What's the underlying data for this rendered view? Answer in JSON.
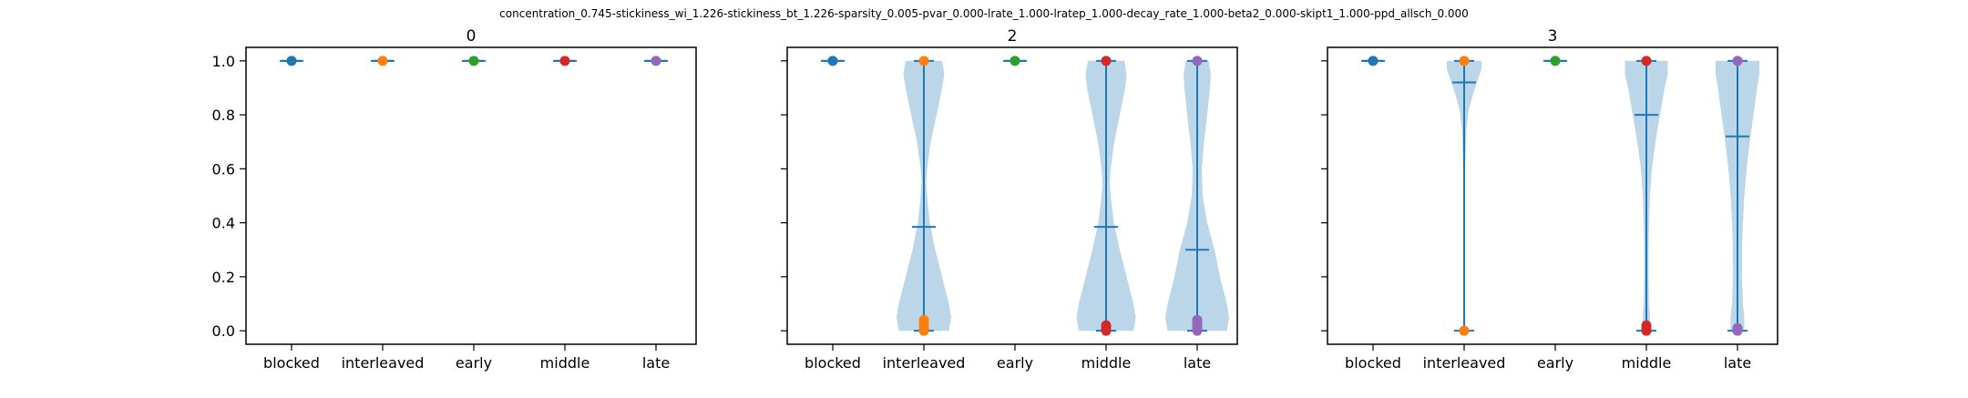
{
  "colors": {
    "blocked": "#1f77b4",
    "interleaved": "#ff7f0e",
    "early": "#2ca02c",
    "middle": "#d62728",
    "late": "#9467bd",
    "violin_fill": "#1f77b4",
    "violin_line": "#1f77b4",
    "axes": "#000000"
  },
  "chart_data": {
    "type": "violin",
    "suptitle": "concentration_0.745-stickiness_wi_1.226-stickiness_bt_1.226-sparsity_0.005-pvar_0.000-lrate_1.000-lratep_1.000-decay_rate_1.000-beta2_0.000-skipt1_1.000-ppd_allsch_0.000",
    "categories": [
      "blocked",
      "interleaved",
      "early",
      "middle",
      "late"
    ],
    "ylim": [
      -0.05,
      1.05
    ],
    "yticks": [
      0.0,
      0.2,
      0.4,
      0.6,
      0.8,
      1.0
    ],
    "ytick_labels": [
      "0.0",
      "0.2",
      "0.4",
      "0.6",
      "0.8",
      "1.0"
    ],
    "panels": [
      {
        "title": "0",
        "series": [
          {
            "name": "blocked",
            "min": 1.0,
            "max": 1.0,
            "mean": 1.0,
            "points": [
              1.0
            ],
            "density": []
          },
          {
            "name": "interleaved",
            "min": 1.0,
            "max": 1.0,
            "mean": 1.0,
            "points": [
              1.0
            ],
            "density": []
          },
          {
            "name": "early",
            "min": 1.0,
            "max": 1.0,
            "mean": 1.0,
            "points": [
              1.0
            ],
            "density": []
          },
          {
            "name": "middle",
            "min": 1.0,
            "max": 1.0,
            "mean": 1.0,
            "points": [
              1.0
            ],
            "density": []
          },
          {
            "name": "late",
            "min": 1.0,
            "max": 1.0,
            "mean": 1.0,
            "points": [
              1.0
            ],
            "density": []
          }
        ]
      },
      {
        "title": "2",
        "series": [
          {
            "name": "blocked",
            "min": 1.0,
            "max": 1.0,
            "mean": 1.0,
            "points": [
              1.0
            ],
            "density": []
          },
          {
            "name": "interleaved",
            "min": 0.0,
            "max": 1.0,
            "mean": 0.385,
            "points": [
              1.0,
              0.0,
              0.01,
              0.02,
              0.03,
              0.04
            ],
            "density": [
              [
                0.0,
                0.55
              ],
              [
                0.05,
                0.6
              ],
              [
                0.1,
                0.55
              ],
              [
                0.2,
                0.4
              ],
              [
                0.3,
                0.25
              ],
              [
                0.4,
                0.13
              ],
              [
                0.5,
                0.07
              ],
              [
                0.55,
                0.05
              ],
              [
                0.6,
                0.07
              ],
              [
                0.7,
                0.15
              ],
              [
                0.8,
                0.28
              ],
              [
                0.9,
                0.4
              ],
              [
                0.95,
                0.45
              ],
              [
                1.0,
                0.4
              ]
            ]
          },
          {
            "name": "early",
            "min": 1.0,
            "max": 1.0,
            "mean": 1.0,
            "points": [
              1.0
            ],
            "density": []
          },
          {
            "name": "middle",
            "min": 0.0,
            "max": 1.0,
            "mean": 0.385,
            "points": [
              1.0,
              0.0,
              0.01,
              0.02
            ],
            "density": [
              [
                0.0,
                0.6
              ],
              [
                0.05,
                0.65
              ],
              [
                0.1,
                0.6
              ],
              [
                0.2,
                0.45
              ],
              [
                0.3,
                0.3
              ],
              [
                0.4,
                0.17
              ],
              [
                0.5,
                0.1
              ],
              [
                0.55,
                0.08
              ],
              [
                0.6,
                0.1
              ],
              [
                0.7,
                0.18
              ],
              [
                0.8,
                0.3
              ],
              [
                0.9,
                0.42
              ],
              [
                0.95,
                0.45
              ],
              [
                1.0,
                0.4
              ]
            ]
          },
          {
            "name": "late",
            "min": 0.0,
            "max": 1.0,
            "mean": 0.3,
            "points": [
              1.0,
              0.0,
              0.01,
              0.02,
              0.03,
              0.04
            ],
            "density": [
              [
                0.0,
                0.65
              ],
              [
                0.05,
                0.7
              ],
              [
                0.1,
                0.65
              ],
              [
                0.2,
                0.5
              ],
              [
                0.3,
                0.38
              ],
              [
                0.4,
                0.22
              ],
              [
                0.5,
                0.12
              ],
              [
                0.6,
                0.1
              ],
              [
                0.7,
                0.15
              ],
              [
                0.8,
                0.22
              ],
              [
                0.9,
                0.28
              ],
              [
                0.95,
                0.3
              ],
              [
                1.0,
                0.25
              ]
            ]
          }
        ]
      },
      {
        "title": "3",
        "series": [
          {
            "name": "blocked",
            "min": 1.0,
            "max": 1.0,
            "mean": 1.0,
            "points": [
              1.0
            ],
            "density": []
          },
          {
            "name": "interleaved",
            "min": 0.0,
            "max": 1.0,
            "mean": 0.92,
            "points": [
              1.0,
              0.0
            ],
            "density": [
              [
                0.0,
                0.01
              ],
              [
                0.3,
                0.01
              ],
              [
                0.6,
                0.02
              ],
              [
                0.75,
                0.05
              ],
              [
                0.82,
                0.1
              ],
              [
                0.88,
                0.2
              ],
              [
                0.93,
                0.3
              ],
              [
                0.97,
                0.38
              ],
              [
                1.0,
                0.38
              ]
            ]
          },
          {
            "name": "early",
            "min": 1.0,
            "max": 1.0,
            "mean": 1.0,
            "points": [
              1.0
            ],
            "density": []
          },
          {
            "name": "middle",
            "min": 0.0,
            "max": 1.0,
            "mean": 0.8,
            "points": [
              1.0,
              0.0,
              0.01,
              0.02
            ],
            "density": [
              [
                0.0,
                0.08
              ],
              [
                0.05,
                0.08
              ],
              [
                0.1,
                0.06
              ],
              [
                0.2,
                0.05
              ],
              [
                0.3,
                0.05
              ],
              [
                0.4,
                0.06
              ],
              [
                0.5,
                0.08
              ],
              [
                0.6,
                0.12
              ],
              [
                0.7,
                0.2
              ],
              [
                0.8,
                0.3
              ],
              [
                0.9,
                0.4
              ],
              [
                0.95,
                0.47
              ],
              [
                1.0,
                0.47
              ]
            ]
          },
          {
            "name": "late",
            "min": 0.0,
            "max": 1.0,
            "mean": 0.72,
            "points": [
              1.0,
              0.0,
              0.01
            ],
            "density": [
              [
                0.0,
                0.15
              ],
              [
                0.05,
                0.15
              ],
              [
                0.1,
                0.12
              ],
              [
                0.2,
                0.1
              ],
              [
                0.3,
                0.1
              ],
              [
                0.4,
                0.12
              ],
              [
                0.5,
                0.15
              ],
              [
                0.6,
                0.2
              ],
              [
                0.7,
                0.27
              ],
              [
                0.8,
                0.35
              ],
              [
                0.9,
                0.43
              ],
              [
                0.95,
                0.48
              ],
              [
                1.0,
                0.48
              ]
            ]
          }
        ]
      }
    ]
  }
}
